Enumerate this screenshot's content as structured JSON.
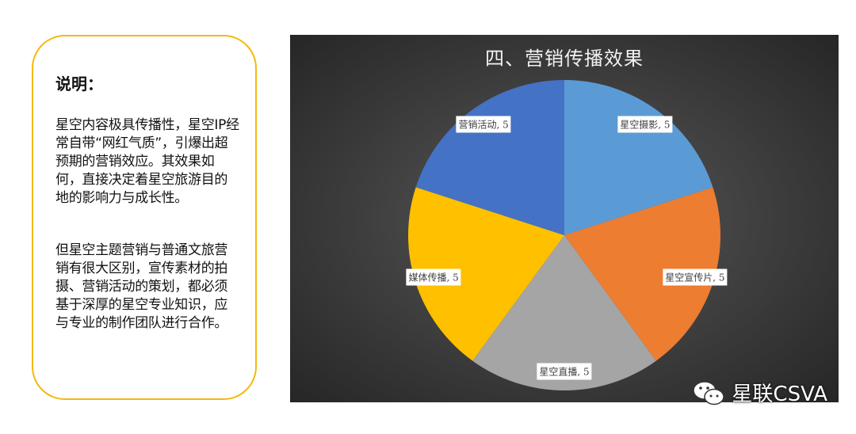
{
  "note": {
    "heading": "说明：",
    "paragraphs": [
      "星空内容极具传播性，星空IP经常自带“网红气质”，引爆出超预期的营销效应。其效果如何，直接决定着星空旅游目的地的影响力与成长性。",
      "但星空主题营销与普通文旅营销有很大区别，宣传素材的拍摄、营销活动的策划，都必须基于深厚的星空专业知识，应与专业的制作团队进行合作。"
    ],
    "border_color": "#f6b80e"
  },
  "chart_data": {
    "type": "pie",
    "title": "四、营销传播效果",
    "categories": [
      "星空摄影",
      "星空宣传片",
      "星空直播",
      "媒体传播",
      "营销活动"
    ],
    "values": [
      5,
      5,
      5,
      5,
      5
    ],
    "data_labels": [
      "星空摄影, 5",
      "星空宣传片, 5",
      "星空直播, 5",
      "媒体传播, 5",
      "营销活动, 5"
    ],
    "colors": [
      "#5b9bd5",
      "#ed7d31",
      "#a5a5a5",
      "#ffc000",
      "#4472c4"
    ],
    "legend": "none",
    "background": "dark-gradient"
  },
  "watermark": {
    "text": "星联CSVA",
    "icon": "wechat-icon"
  }
}
